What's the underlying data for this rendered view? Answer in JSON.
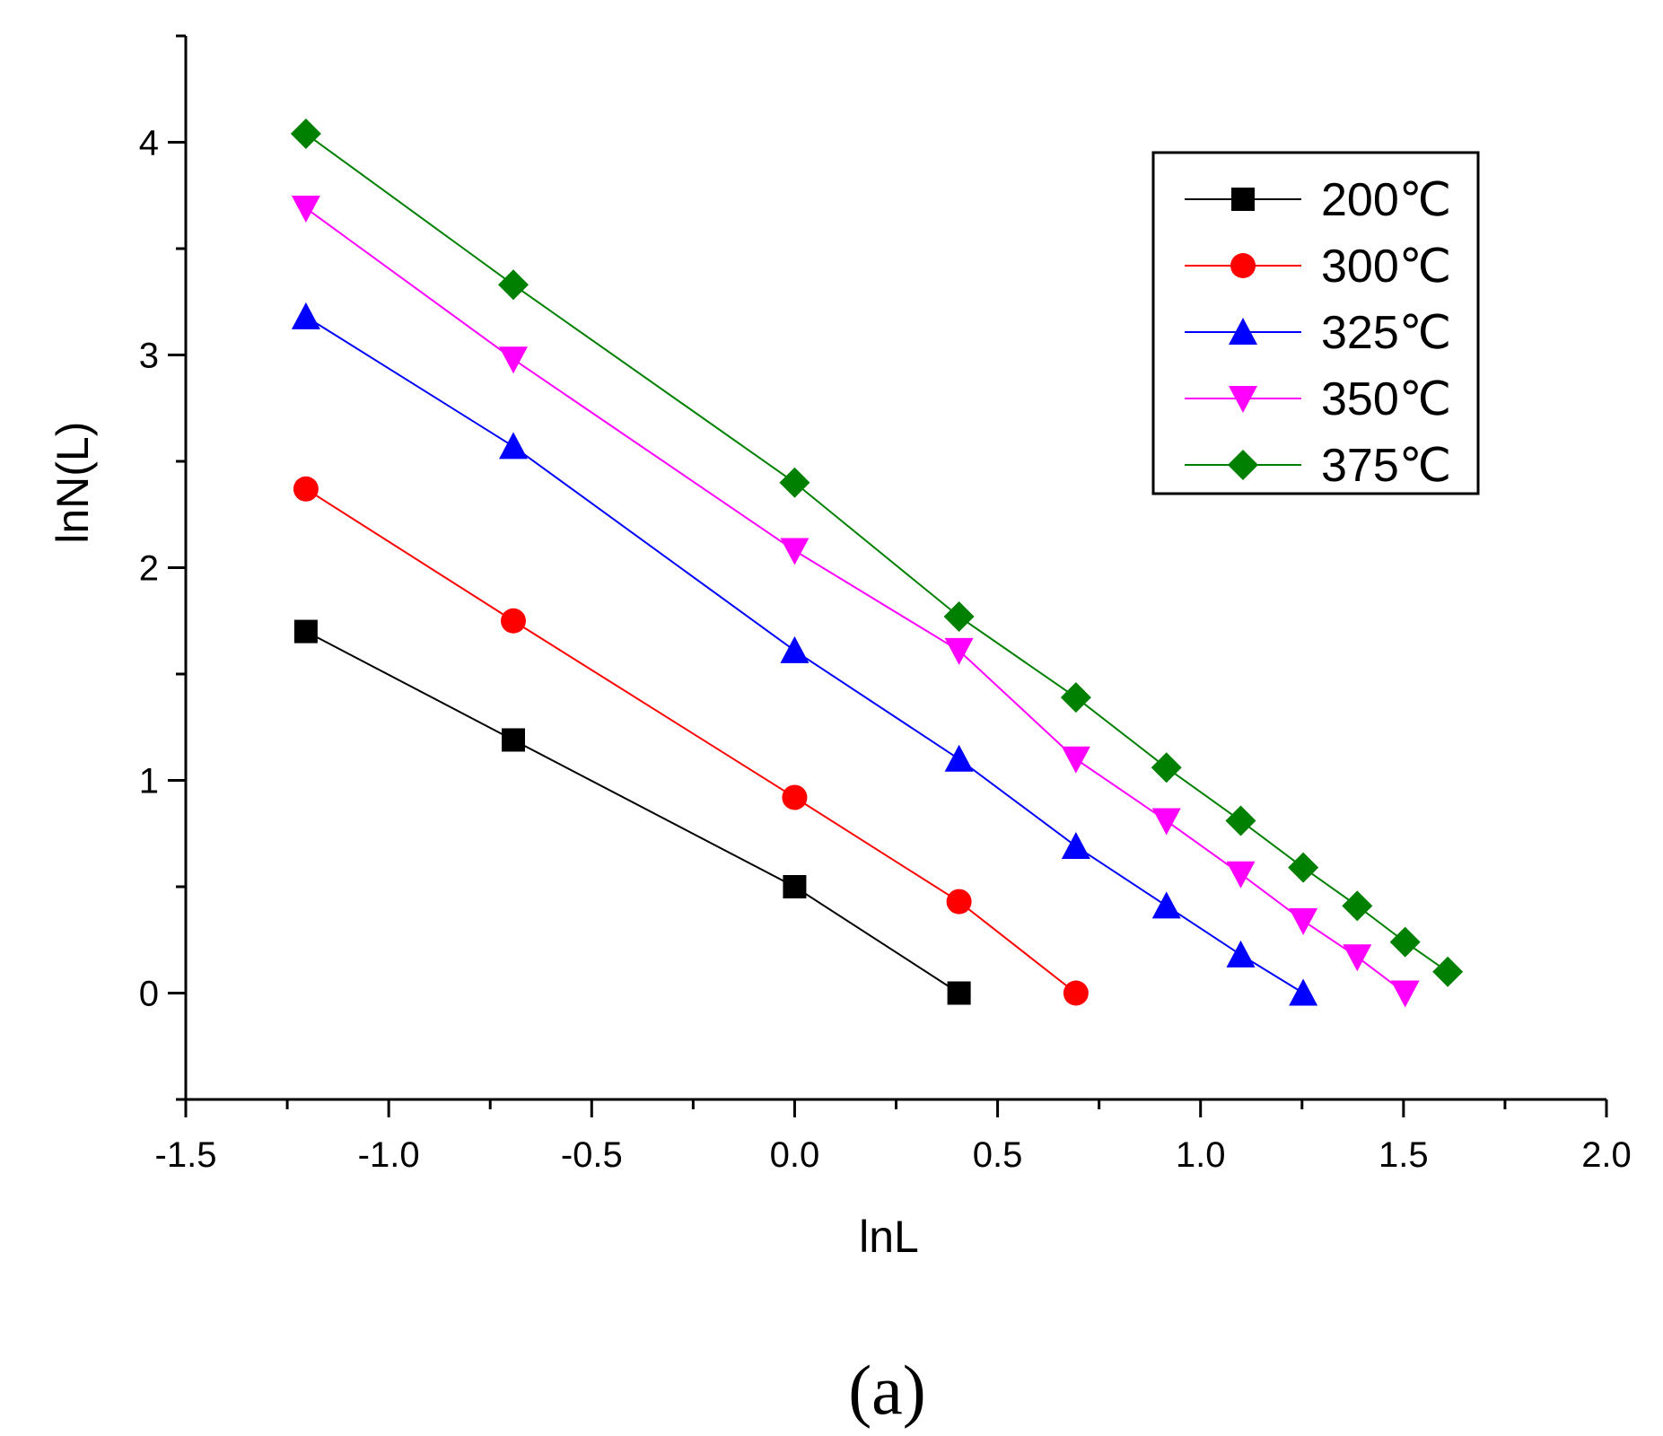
{
  "chart_data": {
    "type": "line",
    "title": "",
    "xlabel": "lnL",
    "ylabel": "lnN(L)",
    "xlim": [
      -1.5,
      2.0
    ],
    "ylim": [
      -0.5,
      4.5
    ],
    "xticks": [
      -1.5,
      -1.0,
      -0.5,
      0.0,
      0.5,
      1.0,
      1.5,
      2.0
    ],
    "xtick_labels": [
      "-1.5",
      "-1.0",
      "-0.5",
      "0.0",
      "0.5",
      "1.0",
      "1.5",
      "2.0"
    ],
    "yticks": [
      0,
      1,
      2,
      3,
      4
    ],
    "ytick_labels": [
      "0",
      "1",
      "2",
      "3",
      "4"
    ],
    "grid": false,
    "legend_position": "top-right",
    "series": [
      {
        "name": "200℃",
        "color": "#000000",
        "marker": "square",
        "x": [
          -1.204,
          -0.693,
          0.0,
          0.405
        ],
        "y": [
          1.7,
          1.19,
          0.5,
          0.0
        ]
      },
      {
        "name": "300℃",
        "color": "#ff0000",
        "marker": "circle",
        "x": [
          -1.204,
          -0.693,
          0.0,
          0.405,
          0.693
        ],
        "y": [
          2.37,
          1.75,
          0.92,
          0.43,
          0.0
        ]
      },
      {
        "name": "325℃",
        "color": "#0000ff",
        "marker": "triangle-up",
        "x": [
          -1.204,
          -0.693,
          0.0,
          0.405,
          0.693,
          0.916,
          1.099,
          1.253
        ],
        "y": [
          3.18,
          2.57,
          1.61,
          1.1,
          0.69,
          0.41,
          0.18,
          0.0
        ]
      },
      {
        "name": "350℃",
        "color": "#ff00ff",
        "marker": "triangle-down",
        "x": [
          -1.204,
          -0.693,
          0.0,
          0.405,
          0.693,
          0.916,
          1.099,
          1.253,
          1.386,
          1.504
        ],
        "y": [
          3.69,
          2.98,
          2.08,
          1.61,
          1.1,
          0.81,
          0.56,
          0.34,
          0.17,
          0.0
        ]
      },
      {
        "name": "375℃",
        "color": "#008000",
        "marker": "diamond",
        "x": [
          -1.204,
          -0.693,
          0.0,
          0.405,
          0.693,
          0.916,
          1.099,
          1.253,
          1.386,
          1.504,
          1.609
        ],
        "y": [
          4.04,
          3.33,
          2.4,
          1.77,
          1.39,
          1.06,
          0.81,
          0.59,
          0.41,
          0.24,
          0.1
        ]
      }
    ],
    "caption": "(a)"
  }
}
